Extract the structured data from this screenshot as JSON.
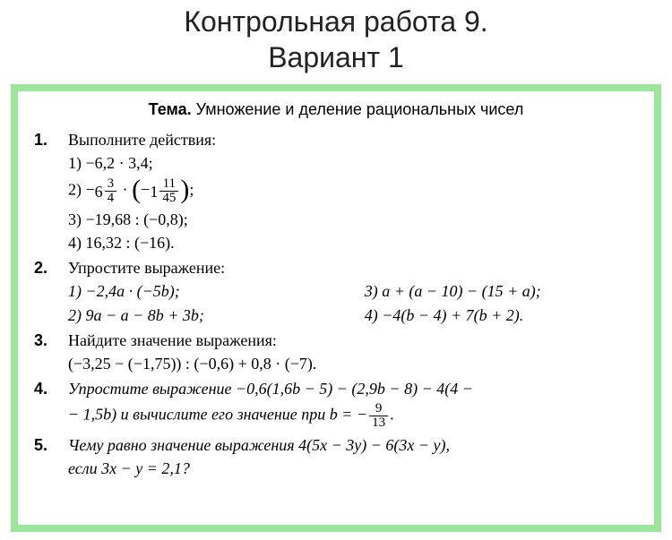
{
  "title_line1": "Контрольная работа 9.",
  "title_line2": "Вариант 1",
  "topic_label": "Тема.",
  "topic_text": " Умножение и деление рациональных чисел",
  "problems": {
    "p1": {
      "num": "1.",
      "prompt": "Выполните действия:",
      "items": {
        "i1": "1) −6,2 · 3,4;",
        "i2_pre": "2) ",
        "i2_neg": "−",
        "i2_int1": "6",
        "i2_frac1_num": "3",
        "i2_frac1_den": "4",
        "i2_dot": " · ",
        "i2_neg2": "−",
        "i2_int2": "1",
        "i2_frac2_num": "11",
        "i2_frac2_den": "45",
        "i2_end": ";",
        "i3": "3) −19,68 : (−0,8);",
        "i4": "4) 16,32 : (−16)."
      }
    },
    "p2": {
      "num": "2.",
      "prompt": "Упростите выражение:",
      "r1a": "1) −2,4a · (−5b);",
      "r1b": "3) a + (a − 10) − (15 + a);",
      "r2a": "2) 9a − a − 8b + 3b;",
      "r2b": "4) −4(b − 4) + 7(b + 2)."
    },
    "p3": {
      "num": "3.",
      "prompt": "Найдите значение выражения:",
      "expr": "(−3,25 − (−1,75)) : (−0,6) + 0,8 · (−7)."
    },
    "p4": {
      "num": "4.",
      "text_a": "Упростите выражение −0,6(1,6b − 5) − (2,9b − 8) − 4(4 −",
      "text_b": "− 1,5b) и вычислите его значение при ",
      "bvar": "b = −",
      "frac_num": "9",
      "frac_den": "13",
      "end": "."
    },
    "p5": {
      "num": "5.",
      "text_a": "Чему равно значение выражения 4(5x − 3y) − 6(3x − y),",
      "text_b": "если 3x − y = 2,1?"
    }
  },
  "styles": {
    "border_color": "#9ce59c",
    "bg_color": "#ffffff",
    "title_color": "#222222"
  }
}
